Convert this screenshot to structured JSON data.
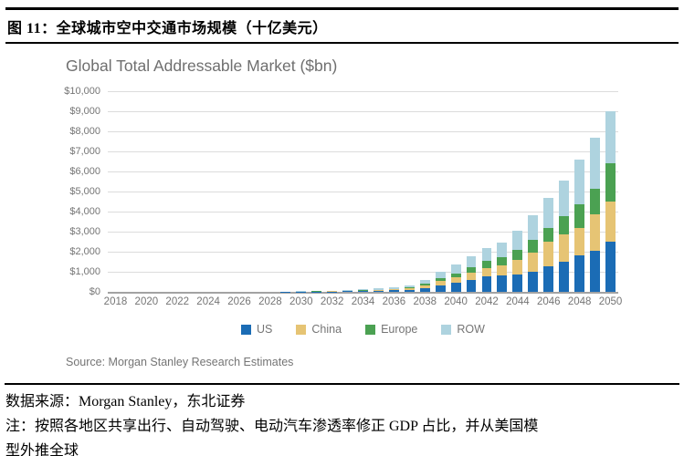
{
  "document": {
    "figure_title": "图 11：全球城市空中交通市场规模（十亿美元）",
    "source_line": "数据来源：Morgan Stanley，东北证券",
    "note_line1": "注：按照各地区共享出行、自动驾驶、电动汽车渗透率修正 GDP 占比，并从美国模",
    "note_line2": "型外推全球"
  },
  "chart": {
    "title": "Global Total Addressable Market ($bn)",
    "source": "Source: Morgan Stanley Research Estimates"
  },
  "chart_data": {
    "type": "bar",
    "stacked": true,
    "title": "Global Total Addressable Market ($bn)",
    "xlabel": "",
    "ylabel": "",
    "ylim": [
      0,
      10000
    ],
    "grid": true,
    "legend_position": "bottom",
    "y_ticks": [
      "$10,000",
      "$9,000",
      "$8,000",
      "$7,000",
      "$6,000",
      "$5,000",
      "$4,000",
      "$3,000",
      "$2,000",
      "$1,000",
      "$0"
    ],
    "x_tick_labels": [
      "2018",
      "2020",
      "2022",
      "2024",
      "2026",
      "2028",
      "2030",
      "2032",
      "2034",
      "2036",
      "2038",
      "2040",
      "2042",
      "2044",
      "2046",
      "2048",
      "2050"
    ],
    "categories": [
      2018,
      2019,
      2020,
      2021,
      2022,
      2023,
      2024,
      2025,
      2026,
      2027,
      2028,
      2029,
      2030,
      2031,
      2032,
      2033,
      2034,
      2035,
      2036,
      2037,
      2038,
      2039,
      2040,
      2041,
      2042,
      2043,
      2044,
      2045,
      2046,
      2047,
      2048,
      2049,
      2050
    ],
    "series": [
      {
        "name": "US",
        "color": "#1b6cb5",
        "values": [
          0,
          0,
          0.3,
          0.3,
          0.6,
          0.6,
          1,
          1.3,
          1.6,
          2.2,
          3,
          5,
          8,
          13,
          19,
          27,
          38,
          53,
          74,
          106,
          192,
          320,
          440,
          600,
          760,
          830,
          850,
          990,
          1270,
          1500,
          1800,
          2050,
          2480
        ]
      },
      {
        "name": "China",
        "color": "#e6c474",
        "values": [
          0,
          0,
          0.2,
          0.2,
          0.4,
          0.4,
          0.6,
          0.8,
          1,
          1.5,
          2,
          3,
          5,
          8,
          13,
          18,
          25,
          35,
          48,
          69,
          126,
          210,
          280,
          360,
          430,
          500,
          730,
          960,
          1230,
          1350,
          1400,
          1800,
          2020
        ]
      },
      {
        "name": "Europe",
        "color": "#4ba152",
        "values": [
          0,
          0,
          0.2,
          0.2,
          0.3,
          0.3,
          0.5,
          0.6,
          0.8,
          1.1,
          2,
          2,
          4,
          7,
          10,
          14,
          19,
          26,
          37,
          53,
          96,
          160,
          210,
          270,
          340,
          390,
          520,
          640,
          680,
          910,
          1180,
          1300,
          1900
        ]
      },
      {
        "name": "ROW",
        "color": "#aed3df",
        "values": [
          0,
          0,
          0.3,
          0.3,
          0.7,
          0.7,
          0.9,
          1.3,
          1.6,
          2.2,
          3,
          5,
          8,
          12,
          18,
          26,
          38,
          51,
          71,
          102,
          186,
          310,
          420,
          550,
          650,
          730,
          950,
          1210,
          1500,
          1800,
          2200,
          2550,
          2600
        ]
      }
    ]
  }
}
